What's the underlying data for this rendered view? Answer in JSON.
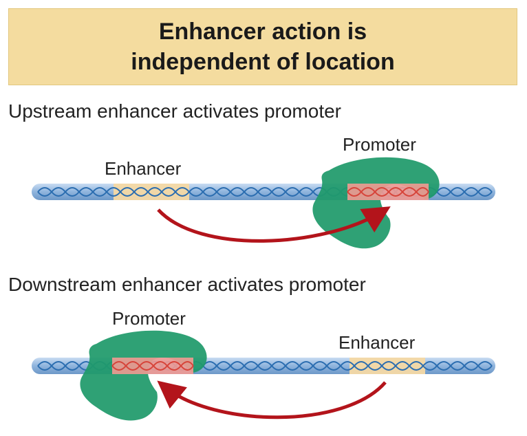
{
  "title": {
    "line1": "Enhancer action is",
    "line2": "independent of location"
  },
  "panels": [
    {
      "caption": "Upstream enhancer activates promoter",
      "enhancer_label": "Enhancer",
      "promoter_label": "Promoter"
    },
    {
      "caption": "Downstream enhancer activates promoter",
      "enhancer_label": "Enhancer",
      "promoter_label": "Promoter"
    }
  ],
  "colors": {
    "title_bg": "#f4dc9f",
    "dna_rod": "#8fb4dd",
    "dna_helix": "#2b6db0",
    "enhancer_region": "#f6d9a4",
    "promoter_region": "#f29a92",
    "protein": "#1f9a6a",
    "arrow": "#b3141b"
  }
}
